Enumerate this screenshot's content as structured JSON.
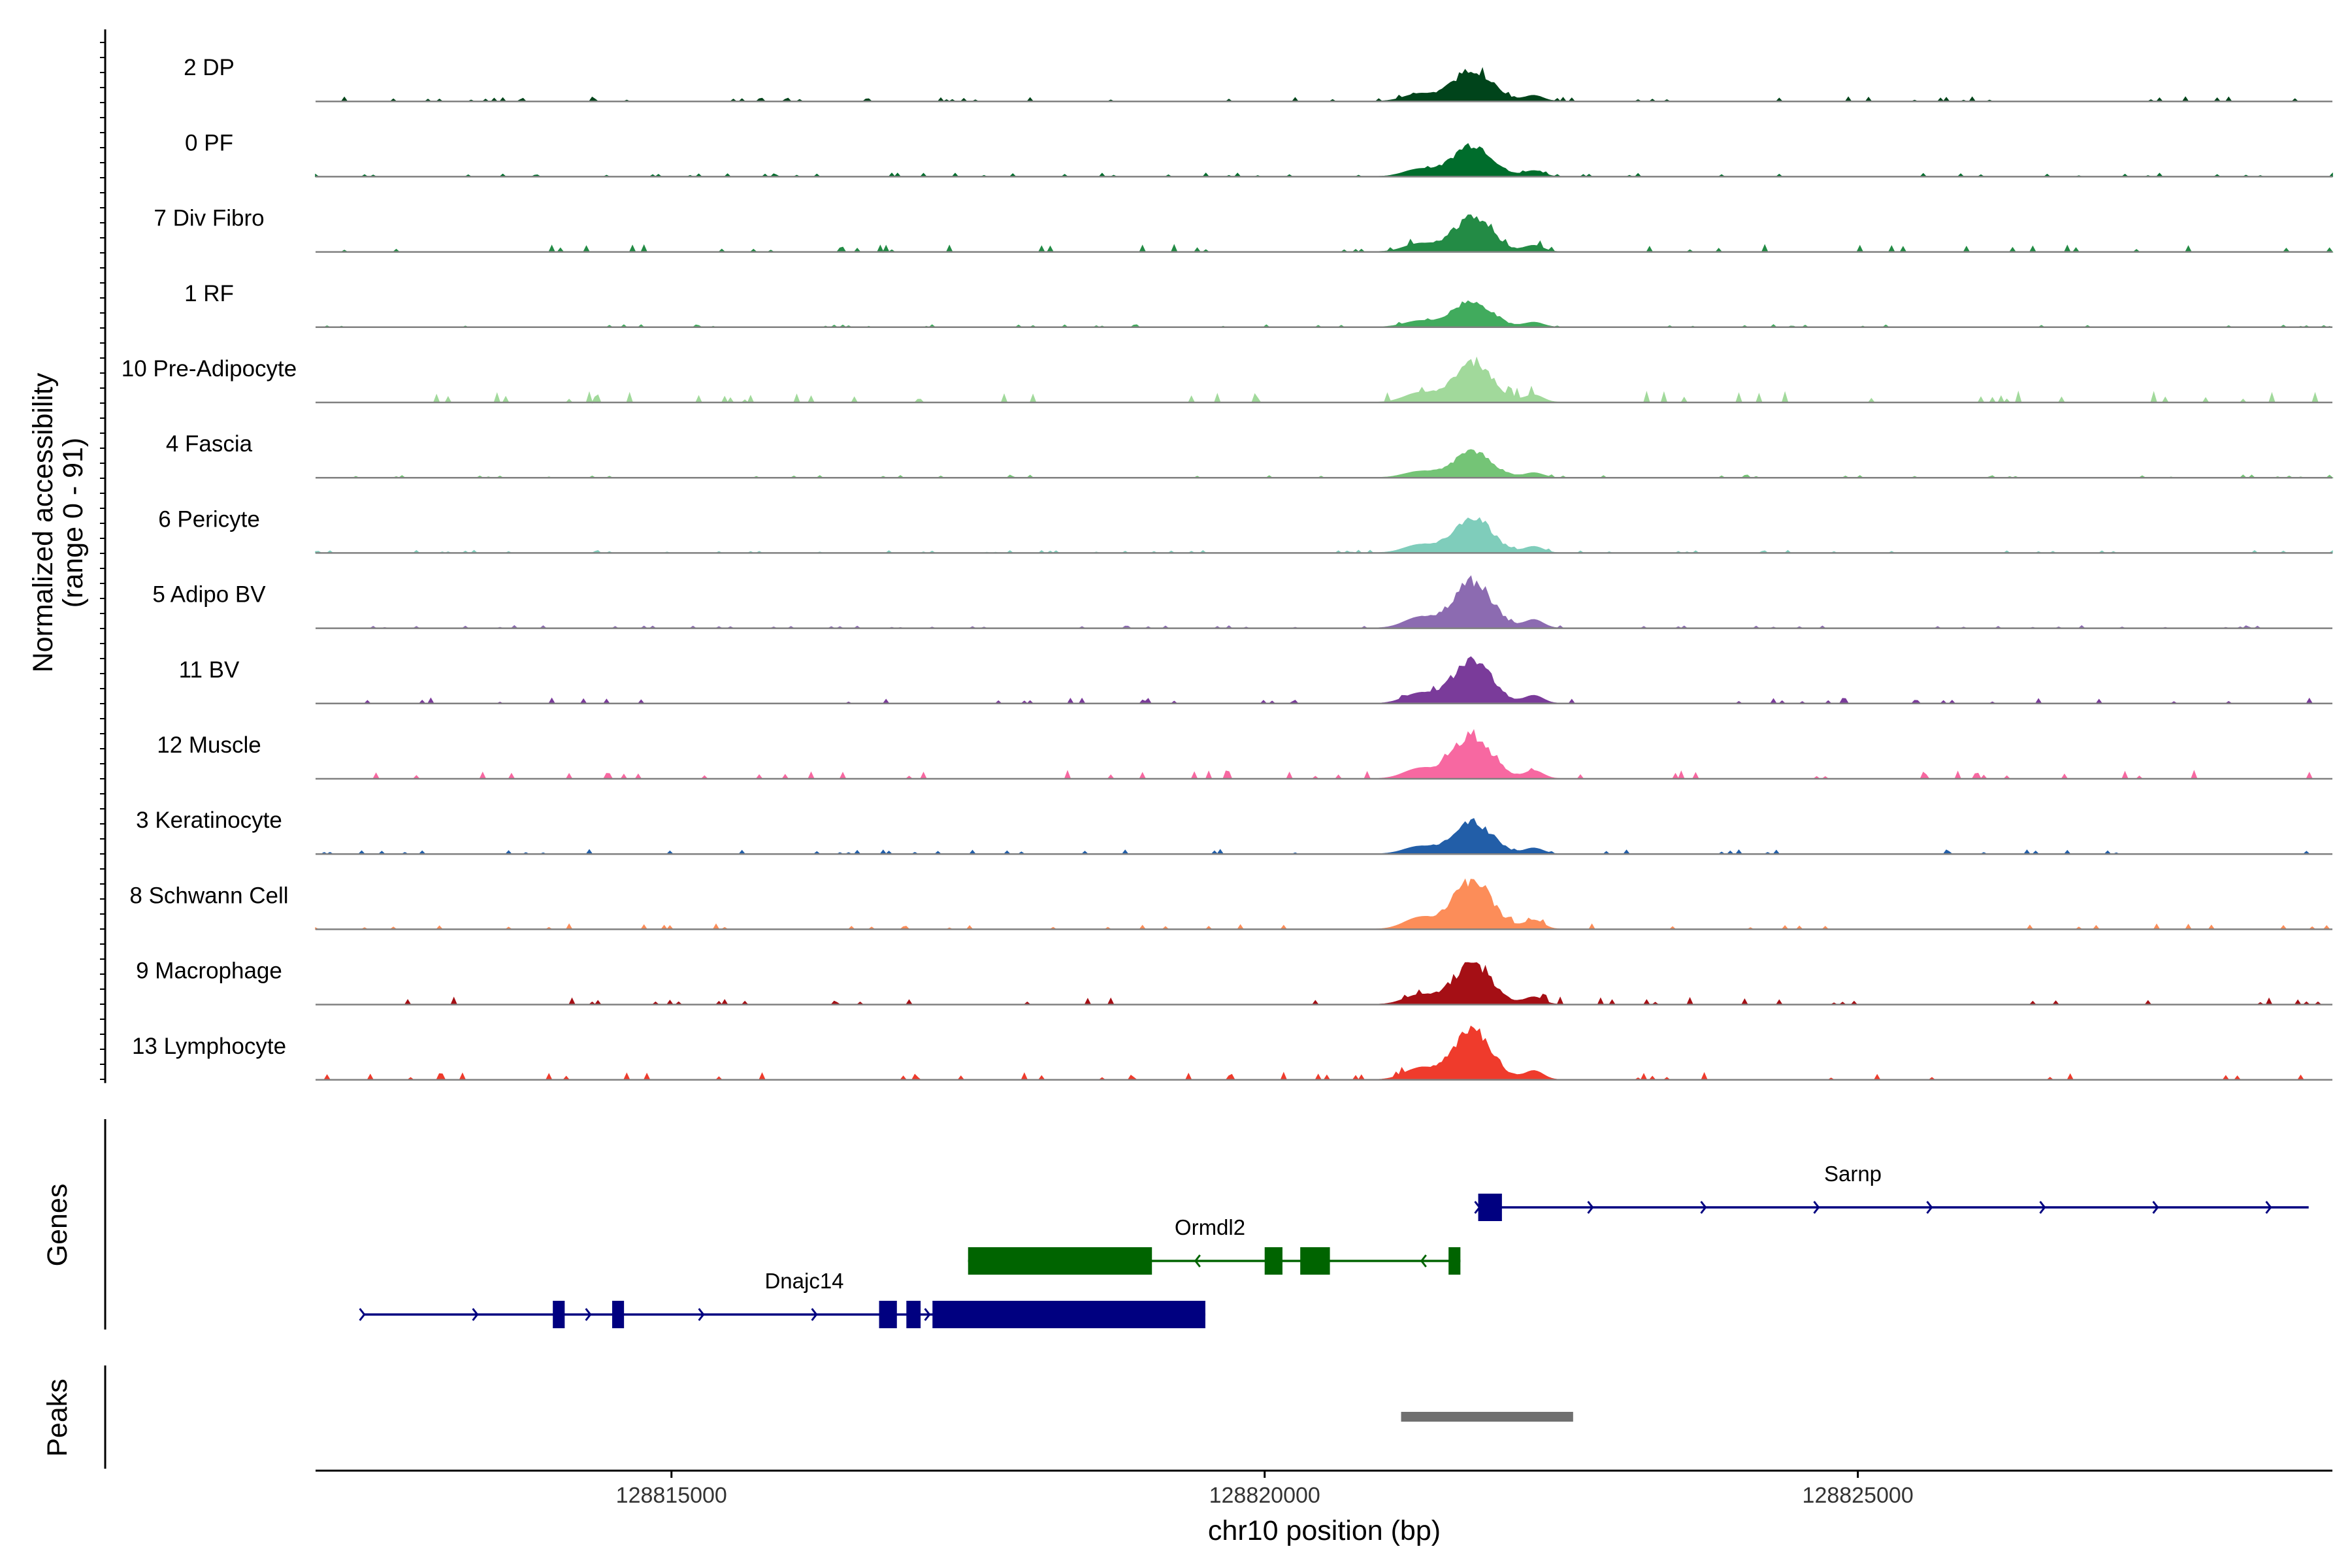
{
  "chart_data": {
    "type": "coverage",
    "chromosome": "chr10",
    "region": [
      128812000,
      128829000
    ],
    "ylabel_line1": "Normalized accessibility",
    "ylabel_line2": "(range 0 - 91)",
    "yrange": [
      0,
      91
    ],
    "xlabel": "chr10 position (bp)",
    "x_ticks": [
      128815000,
      128820000,
      128825000
    ],
    "x_tick_labels": [
      "128815000",
      "128820000",
      "128825000"
    ],
    "tracks": [
      {
        "name": "2 DP",
        "color": "#00441b",
        "main_peak": 0.55,
        "noise": 0.05
      },
      {
        "name": "0 PF",
        "color": "#006d2c",
        "main_peak": 0.55,
        "noise": 0.04
      },
      {
        "name": "7 Div Fibro",
        "color": "#238b45",
        "main_peak": 0.6,
        "noise": 0.08
      },
      {
        "name": "1 RF",
        "color": "#41ab5d",
        "main_peak": 0.45,
        "noise": 0.03
      },
      {
        "name": "10 Pre-Adipocyte",
        "color": "#a1d99b",
        "main_peak": 0.7,
        "noise": 0.12
      },
      {
        "name": "4 Fascia",
        "color": "#74c476",
        "main_peak": 0.45,
        "noise": 0.03
      },
      {
        "name": "6 Pericyte",
        "color": "#7fcdbb",
        "main_peak": 0.6,
        "noise": 0.03
      },
      {
        "name": "5 Adipo BV",
        "color": "#8c6bb1",
        "main_peak": 0.8,
        "noise": 0.03
      },
      {
        "name": "11 BV",
        "color": "#7a3b9a",
        "main_peak": 0.75,
        "noise": 0.06
      },
      {
        "name": "12 Muscle",
        "color": "#f768a1",
        "main_peak": 0.75,
        "noise": 0.09
      },
      {
        "name": "3 Keratinocyte",
        "color": "#225ea8",
        "main_peak": 0.55,
        "noise": 0.05
      },
      {
        "name": "8 Schwann Cell",
        "color": "#fc8d59",
        "main_peak": 0.85,
        "noise": 0.06
      },
      {
        "name": "9 Macrophage",
        "color": "#a50f15",
        "main_peak": 0.7,
        "noise": 0.08
      },
      {
        "name": "13 Lymphocyte",
        "color": "#ef3b2c",
        "main_peak": 0.85,
        "noise": 0.08
      }
    ],
    "panel_labels": {
      "genes": "Genes",
      "peaks": "Peaks"
    },
    "genes": [
      {
        "name": "Sarnp",
        "strand": "+",
        "start": 128821800,
        "end": 128828800,
        "row": 0,
        "color": "#000080",
        "exons": [
          [
            128821800,
            128822000
          ]
        ]
      },
      {
        "name": "Ormdl2",
        "strand": "-",
        "start": 128817500,
        "end": 128821650,
        "row": 1,
        "color": "#006400",
        "exons": [
          [
            128817500,
            128819050
          ],
          [
            128820000,
            128820150
          ],
          [
            128820300,
            128820550
          ],
          [
            128821550,
            128821650
          ]
        ]
      },
      {
        "name": "Dnajc14",
        "strand": "+",
        "start": 128812400,
        "end": 128819500,
        "row": 2,
        "color": "#000080",
        "exons": [
          [
            128814000,
            128814100
          ],
          [
            128814500,
            128814600
          ],
          [
            128816750,
            128816900
          ],
          [
            128816980,
            128817100
          ],
          [
            128817200,
            128819500
          ]
        ]
      }
    ],
    "peaks": [
      {
        "start": 128821150,
        "end": 128822600
      }
    ],
    "colors": {
      "baseline": "#808080",
      "peak_bar": "#707070",
      "axis": "#000000"
    }
  }
}
